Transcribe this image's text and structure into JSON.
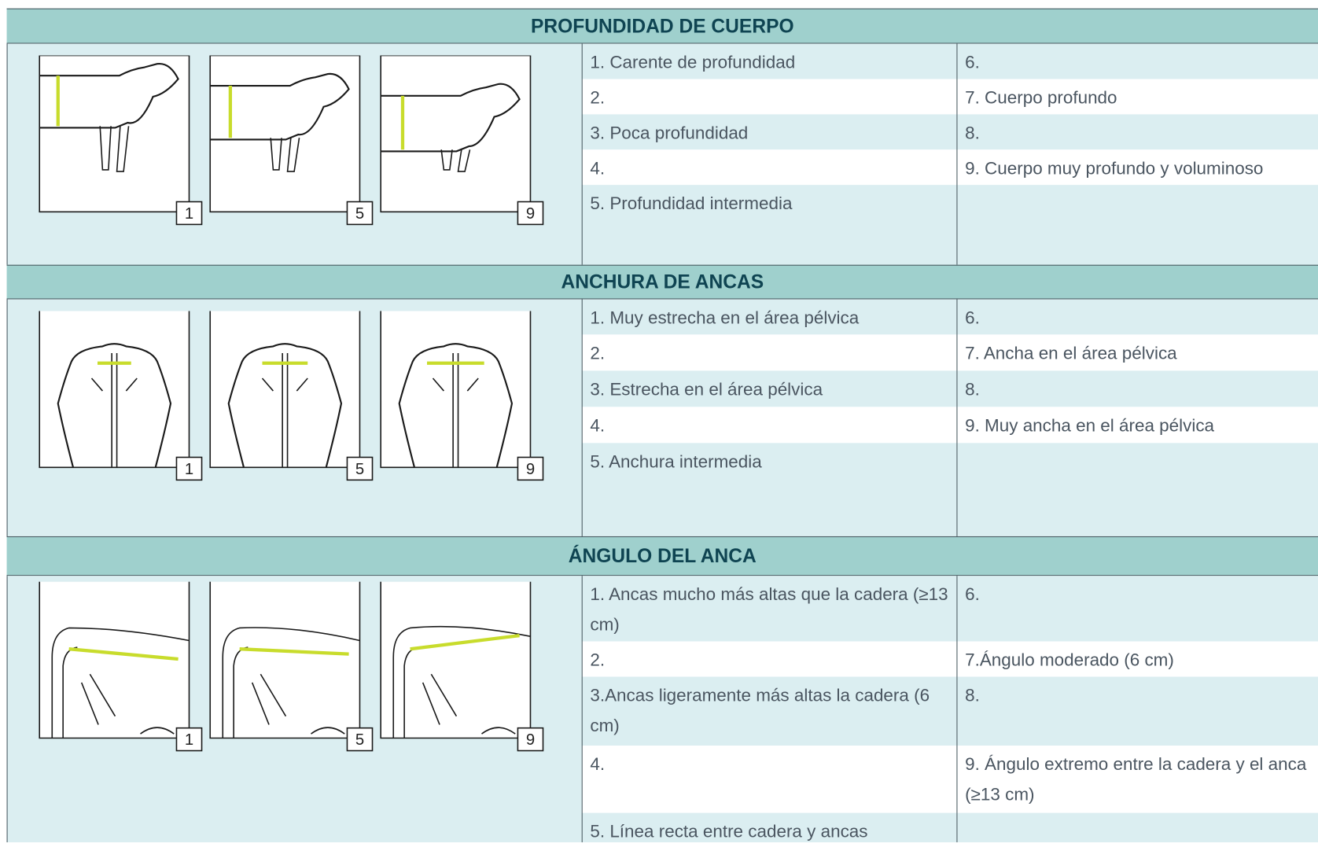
{
  "sections": [
    {
      "title": "PROFUNDIDAD DE CUERPO",
      "image_labels": [
        "1",
        "5",
        "9"
      ],
      "left": [
        "1. Carente de profundidad",
        "2.",
        "3. Poca profundidad",
        "4.",
        "5. Profundidad intermedia"
      ],
      "right": [
        "6.",
        "7. Cuerpo profundo",
        "8.",
        "9. Cuerpo muy profundo y voluminoso"
      ]
    },
    {
      "title": "ANCHURA DE ANCAS",
      "image_labels": [
        "1",
        "5",
        "9"
      ],
      "left": [
        "1. Muy estrecha en el área pélvica",
        "2.",
        "3. Estrecha en el área pélvica",
        "4.",
        "5. Anchura intermedia"
      ],
      "right": [
        "6.",
        "7. Ancha en el área pélvica",
        "8.",
        "9. Muy ancha en el área pélvica"
      ]
    },
    {
      "title": "ÁNGULO DEL ANCA",
      "image_labels": [
        "1",
        "5",
        "9"
      ],
      "left": [
        "1. Ancas mucho más altas que la cadera (≥13 cm)",
        "2.",
        "3.Ancas ligeramente más altas la cadera (6 cm)",
        "4.",
        "5. Línea recta entre cadera y ancas"
      ],
      "right": [
        "6.",
        "7.Ángulo moderado (6 cm)",
        "8.",
        "9. Ángulo extremo entre la cadera y el anca (≥13 cm)"
      ]
    }
  ]
}
